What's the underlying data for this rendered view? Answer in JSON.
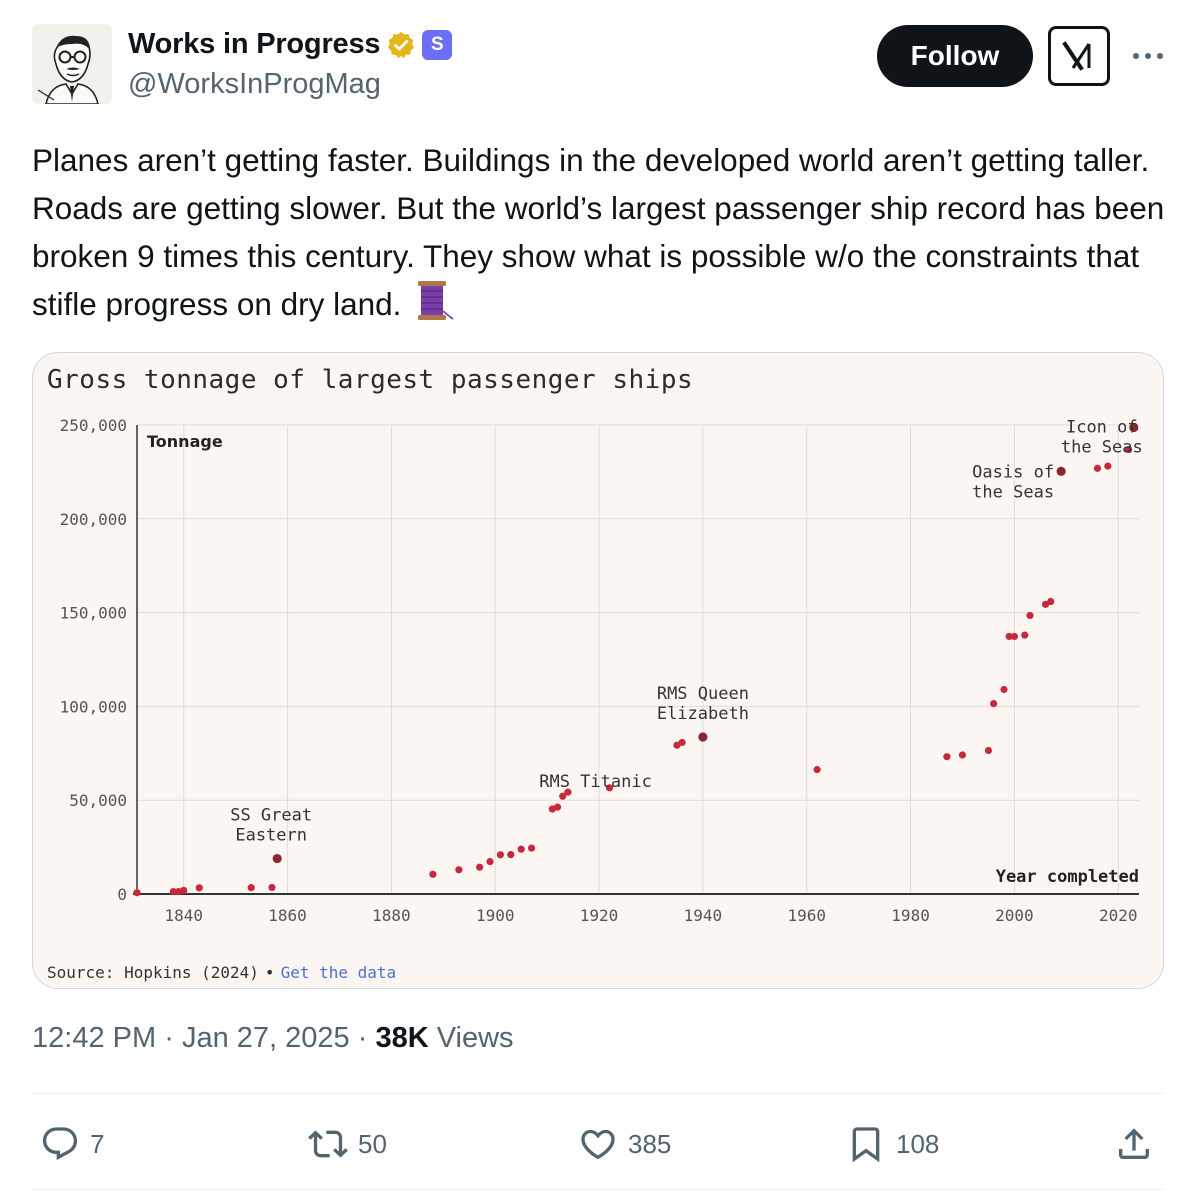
{
  "author": {
    "display_name": "Works in Progress",
    "handle": "@WorksInProgMag",
    "sub_badge": "S"
  },
  "buttons": {
    "follow": "Follow"
  },
  "icons": {
    "verified": "verified-badge-icon",
    "grok": "grok-icon",
    "more": "more-icon",
    "reply": "reply-icon",
    "repost": "repost-icon",
    "like": "like-icon",
    "bookmark": "bookmark-icon",
    "share": "share-icon",
    "spool": "thread-spool-emoji"
  },
  "tweet": {
    "text": "Planes aren’t getting faster. Buildings in the developed world aren’t getting taller. Roads are getting slower. But the world’s largest passenger ship record has been broken 9 times this century. They show what is possible w/o the constraints that stifle progress on dry land. "
  },
  "colors": {
    "dot": "#c8283e",
    "highlight_dot": "#8e2530",
    "follow_bg": "#0f1419",
    "card_bg": "#fbf6f1",
    "verified": "#e2b719",
    "sub_badge": "#6a6ff5"
  },
  "chart": {
    "title": "Gross tonnage of largest passenger ships",
    "source_label": "Source: Hopkins (2024)",
    "dot_sep": "•",
    "source_link": "Get the data"
  },
  "chart_data": {
    "type": "scatter",
    "title": "Gross tonnage of largest passenger ships",
    "ylabel": "Tonnage",
    "xlabel": "Year completed",
    "xlim": [
      1831,
      2024
    ],
    "ylim": [
      0,
      250000
    ],
    "x_ticks": [
      1840,
      1860,
      1880,
      1900,
      1920,
      1940,
      1960,
      1980,
      2000,
      2020
    ],
    "y_ticks": [
      0,
      50000,
      100000,
      150000,
      200000,
      250000
    ],
    "y_tick_labels": [
      "0",
      "50,000",
      "100,000",
      "150,000",
      "200,000",
      "250,000"
    ],
    "grid": true,
    "points": [
      {
        "x": 1831,
        "y": 700
      },
      {
        "x": 1838,
        "y": 1300
      },
      {
        "x": 1839,
        "y": 1300
      },
      {
        "x": 1840,
        "y": 1900
      },
      {
        "x": 1843,
        "y": 3300
      },
      {
        "x": 1853,
        "y": 3400
      },
      {
        "x": 1857,
        "y": 3500
      },
      {
        "x": 1858,
        "y": 18900
      },
      {
        "x": 1888,
        "y": 10500
      },
      {
        "x": 1893,
        "y": 12900
      },
      {
        "x": 1897,
        "y": 14300
      },
      {
        "x": 1899,
        "y": 17300
      },
      {
        "x": 1901,
        "y": 20900
      },
      {
        "x": 1903,
        "y": 21000
      },
      {
        "x": 1905,
        "y": 23900
      },
      {
        "x": 1907,
        "y": 24500
      },
      {
        "x": 1911,
        "y": 45300
      },
      {
        "x": 1912,
        "y": 46300
      },
      {
        "x": 1913,
        "y": 52100
      },
      {
        "x": 1914,
        "y": 54300
      },
      {
        "x": 1922,
        "y": 56600
      },
      {
        "x": 1935,
        "y": 79300
      },
      {
        "x": 1936,
        "y": 80800
      },
      {
        "x": 1940,
        "y": 83700
      },
      {
        "x": 1962,
        "y": 66300
      },
      {
        "x": 1987,
        "y": 73200
      },
      {
        "x": 1990,
        "y": 74100
      },
      {
        "x": 1995,
        "y": 76500
      },
      {
        "x": 1996,
        "y": 101500
      },
      {
        "x": 1998,
        "y": 109000
      },
      {
        "x": 1999,
        "y": 137300
      },
      {
        "x": 2000,
        "y": 137300
      },
      {
        "x": 2002,
        "y": 138000
      },
      {
        "x": 2003,
        "y": 148500
      },
      {
        "x": 2006,
        "y": 154400
      },
      {
        "x": 2007,
        "y": 155900
      },
      {
        "x": 2009,
        "y": 225300
      },
      {
        "x": 2016,
        "y": 226900
      },
      {
        "x": 2018,
        "y": 228100
      },
      {
        "x": 2022,
        "y": 236900
      },
      {
        "x": 2023,
        "y": 248700
      }
    ],
    "highlight_x": [
      1858,
      1940,
      2009,
      2023
    ],
    "annotations": [
      {
        "lines": [
          "SS Great",
          "Eastern"
        ],
        "x": 1858,
        "y": 18900
      },
      {
        "lines": [
          "RMS Titanic"
        ],
        "x": 1912,
        "y": 46300
      },
      {
        "lines": [
          "RMS Queen",
          "Elizabeth"
        ],
        "x": 1940,
        "y": 83700
      },
      {
        "lines": [
          "Oasis of",
          "the Seas"
        ],
        "x": 2009,
        "y": 225300
      },
      {
        "lines": [
          "Icon of",
          "the Seas"
        ],
        "x": 2023,
        "y": 248700
      }
    ]
  },
  "meta": {
    "time": "12:42 PM",
    "sep1": "·",
    "date": "Jan 27, 2025",
    "sep2": "·",
    "views_count": "38K",
    "views_label": "Views"
  },
  "actions": {
    "replies": "7",
    "reposts": "50",
    "likes": "385",
    "bookmarks": "108"
  }
}
